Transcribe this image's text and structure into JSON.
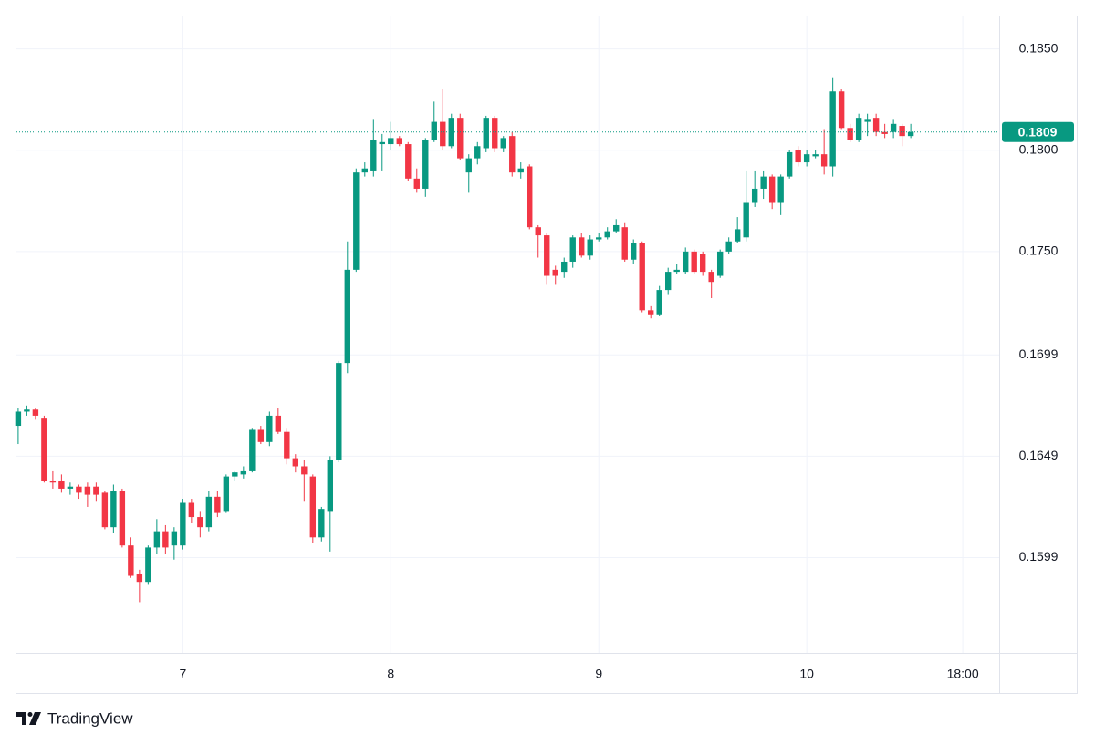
{
  "chart_data": {
    "type": "candlestick",
    "brand": "TradingView",
    "up_color": "#089981",
    "down_color": "#f23645",
    "last_price": 0.1809,
    "last_price_color": "#089981",
    "grid": true,
    "xlim": [
      -0.2,
      113.2
    ],
    "xticks": [
      {
        "value": 19,
        "label": "7"
      },
      {
        "value": 43,
        "label": "8"
      },
      {
        "value": 67,
        "label": "9"
      },
      {
        "value": 91,
        "label": "10"
      },
      {
        "value": 109,
        "label": "18:00"
      }
    ],
    "ylim": [
      0.1552,
      0.1866
    ],
    "yticks": [
      {
        "value": 0.185,
        "label": "0.1850"
      },
      {
        "value": 0.18,
        "label": "0.1800"
      },
      {
        "value": 0.175,
        "label": "0.1750"
      },
      0.1699,
      0.1649,
      0.1599
    ],
    "open": [
      0.1664,
      0.1671,
      0.1672,
      0.1668,
      0.1637,
      0.1637,
      0.1633,
      0.1634,
      0.1634,
      0.1634,
      0.1631,
      0.1614,
      0.1632,
      0.1605,
      0.1591,
      0.1587,
      0.1604,
      0.1612,
      0.1605,
      0.1605,
      0.1626,
      0.1619,
      0.1614,
      0.1629,
      0.1622,
      0.1639,
      0.164,
      0.1642,
      0.1662,
      0.1656,
      0.1669,
      0.1661,
      0.1648,
      0.1644,
      0.1639,
      0.1609,
      0.1622,
      0.1647,
      0.1695,
      0.1741,
      0.1789,
      0.179,
      0.1803,
      0.1803,
      0.1806,
      0.1803,
      0.1786,
      0.1781,
      0.1805,
      0.1814,
      0.1802,
      0.1816,
      0.1789,
      0.1796,
      0.1801,
      0.1816,
      0.1801,
      0.1807,
      0.1789,
      0.1792,
      0.1762,
      0.1758,
      0.1741,
      0.174,
      0.1745,
      0.1757,
      0.1748,
      0.1756,
      0.1757,
      0.176,
      0.1762,
      0.1746,
      0.1754,
      0.1721,
      0.1719,
      0.1731,
      0.174,
      0.174,
      0.175,
      0.1749,
      0.174,
      0.1738,
      0.175,
      0.1755,
      0.1757,
      0.1774,
      0.1781,
      0.1787,
      0.1774,
      0.1787,
      0.18,
      0.1794,
      0.1797,
      0.1798,
      0.1792,
      0.1829,
      0.1811,
      0.1805,
      0.1814,
      0.1816,
      0.1809,
      0.1809,
      0.1812,
      0.1807
    ],
    "high": [
      0.1673,
      0.1674,
      0.1673,
      0.1669,
      0.1642,
      0.164,
      0.1636,
      0.1635,
      0.1636,
      0.1636,
      0.1632,
      0.1635,
      0.1633,
      0.1609,
      0.1593,
      0.1605,
      0.1618,
      0.1615,
      0.1614,
      0.1628,
      0.1628,
      0.1622,
      0.1632,
      0.1632,
      0.164,
      0.1642,
      0.1644,
      0.1663,
      0.1664,
      0.1671,
      0.1673,
      0.1663,
      0.165,
      0.1647,
      0.164,
      0.1624,
      0.1649,
      0.1696,
      0.1755,
      0.1791,
      0.1794,
      0.1815,
      0.1808,
      0.1814,
      0.1807,
      0.1804,
      0.1791,
      0.1806,
      0.1824,
      0.183,
      0.1818,
      0.1818,
      0.1798,
      0.1804,
      0.1817,
      0.1817,
      0.1807,
      0.1809,
      0.1794,
      0.1793,
      0.1763,
      0.1759,
      0.1743,
      0.1747,
      0.1758,
      0.1759,
      0.1758,
      0.1759,
      0.1762,
      0.1766,
      0.1764,
      0.1756,
      0.1755,
      0.1723,
      0.1733,
      0.1742,
      0.1744,
      0.1752,
      0.1751,
      0.175,
      0.1741,
      0.1751,
      0.1757,
      0.1767,
      0.179,
      0.179,
      0.179,
      0.1788,
      0.1788,
      0.18,
      0.1802,
      0.18,
      0.18,
      0.181,
      0.1836,
      0.183,
      0.1813,
      0.1818,
      0.1818,
      0.1818,
      0.1813,
      0.1815,
      0.1813,
      0.1813
    ],
    "low": [
      0.1655,
      0.1669,
      0.1667,
      0.1636,
      0.1633,
      0.1631,
      0.163,
      0.1628,
      0.1624,
      0.1627,
      0.1613,
      0.1611,
      0.1604,
      0.1589,
      0.1577,
      0.1586,
      0.1601,
      0.1601,
      0.1598,
      0.1603,
      0.1616,
      0.1609,
      0.1612,
      0.1619,
      0.1621,
      0.1637,
      0.1638,
      0.1641,
      0.1655,
      0.1654,
      0.166,
      0.1645,
      0.1641,
      0.1627,
      0.1606,
      0.1607,
      0.1602,
      0.1646,
      0.169,
      0.174,
      0.1787,
      0.1787,
      0.179,
      0.18,
      0.1802,
      0.1785,
      0.1779,
      0.1777,
      0.1804,
      0.18,
      0.1801,
      0.1795,
      0.1779,
      0.1793,
      0.1799,
      0.1799,
      0.1799,
      0.1787,
      0.1786,
      0.1761,
      0.1747,
      0.1734,
      0.1734,
      0.1737,
      0.1742,
      0.1747,
      0.1746,
      0.1755,
      0.1756,
      0.1759,
      0.1745,
      0.1744,
      0.172,
      0.1717,
      0.1718,
      0.1729,
      0.1739,
      0.1739,
      0.1739,
      0.1738,
      0.1727,
      0.1737,
      0.1749,
      0.1754,
      0.1755,
      0.1772,
      0.1776,
      0.1771,
      0.1768,
      0.1786,
      0.1792,
      0.1792,
      0.1796,
      0.1788,
      0.1787,
      0.181,
      0.1804,
      0.1804,
      0.1807,
      0.1807,
      0.1806,
      0.1806,
      0.1802,
      0.1806
    ],
    "close": [
      0.1671,
      0.1672,
      0.1669,
      0.1637,
      0.1636,
      0.1633,
      0.1634,
      0.1631,
      0.163,
      0.163,
      0.1614,
      0.1632,
      0.1605,
      0.159,
      0.1587,
      0.1604,
      0.1612,
      0.1604,
      0.1612,
      0.1626,
      0.1619,
      0.1614,
      0.1629,
      0.1621,
      0.1639,
      0.1641,
      0.1642,
      0.1662,
      0.1656,
      0.1669,
      0.1661,
      0.1648,
      0.1644,
      0.164,
      0.1609,
      0.1623,
      0.1647,
      0.1695,
      0.1741,
      0.1789,
      0.1791,
      0.1805,
      0.1804,
      0.1806,
      0.1803,
      0.1786,
      0.1781,
      0.1805,
      0.1814,
      0.1802,
      0.1816,
      0.1796,
      0.1796,
      0.1802,
      0.1816,
      0.1801,
      0.1806,
      0.1789,
      0.1791,
      0.1762,
      0.1758,
      0.1738,
      0.1738,
      0.1745,
      0.1757,
      0.1748,
      0.1756,
      0.1757,
      0.176,
      0.1763,
      0.1746,
      0.1754,
      0.1721,
      0.1719,
      0.1731,
      0.174,
      0.1741,
      0.175,
      0.174,
      0.174,
      0.1735,
      0.175,
      0.1755,
      0.1761,
      0.1774,
      0.1781,
      0.1787,
      0.1774,
      0.1787,
      0.1799,
      0.1794,
      0.1798,
      0.1798,
      0.1792,
      0.1829,
      0.1811,
      0.1805,
      0.1816,
      0.1815,
      0.1809,
      0.1808,
      0.1813,
      0.1807,
      0.1809
    ]
  }
}
